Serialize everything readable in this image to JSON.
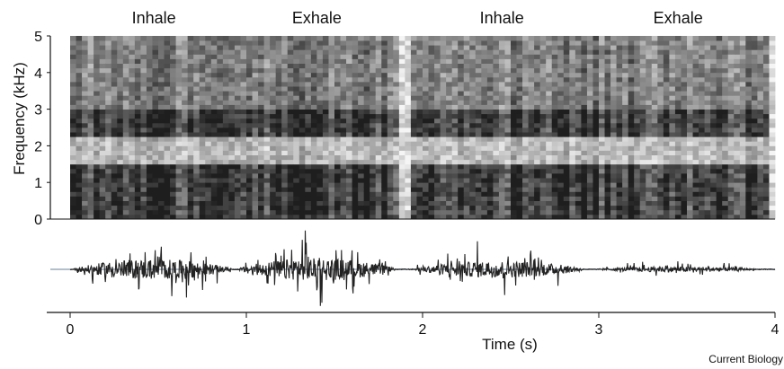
{
  "chart_data": [
    {
      "type": "heatmap",
      "title": "",
      "xlabel": "",
      "ylabel": "Frequency (kHz)",
      "xlim": [
        0,
        4
      ],
      "ylim": [
        0,
        5
      ],
      "yticks": [
        "0",
        "1",
        "2",
        "3",
        "4",
        "5"
      ],
      "grid": false,
      "colormap": "grayscale",
      "phases": [
        {
          "label": "Inhale",
          "start": 0.0,
          "end": 0.95
        },
        {
          "label": "Exhale",
          "start": 0.95,
          "end": 1.85
        },
        {
          "label": "Inhale",
          "start": 1.95,
          "end": 2.95
        },
        {
          "label": "Exhale",
          "start": 2.95,
          "end": 3.95
        }
      ],
      "energy_bands_khz": [
        {
          "low": 0.0,
          "high": 1.5,
          "level": "high"
        },
        {
          "low": 2.3,
          "high": 3.0,
          "level": "high"
        },
        {
          "low": 3.0,
          "high": 5.0,
          "level": "medium"
        },
        {
          "low": 1.5,
          "high": 2.3,
          "level": "low"
        }
      ]
    },
    {
      "type": "line",
      "title": "",
      "xlabel": "Time (s)",
      "ylabel": "",
      "xlim": [
        0,
        4
      ],
      "xticks": [
        "0",
        "1",
        "2",
        "3",
        "4"
      ],
      "grid": false,
      "series": [
        {
          "color": "#222222",
          "segments": [
            {
              "start": 0.02,
              "end": 0.92,
              "peak": 0.9
            },
            {
              "start": 0.95,
              "end": 1.85,
              "peak": 1.0
            },
            {
              "start": 1.95,
              "end": 2.92,
              "peak": 0.75
            },
            {
              "start": 3.0,
              "end": 3.9,
              "peak": 0.25
            }
          ]
        }
      ]
    }
  ],
  "credit": "Current Biology",
  "colors": {
    "waveform": "#222222",
    "baseline": "#9aaab8",
    "axis": "#111111"
  }
}
